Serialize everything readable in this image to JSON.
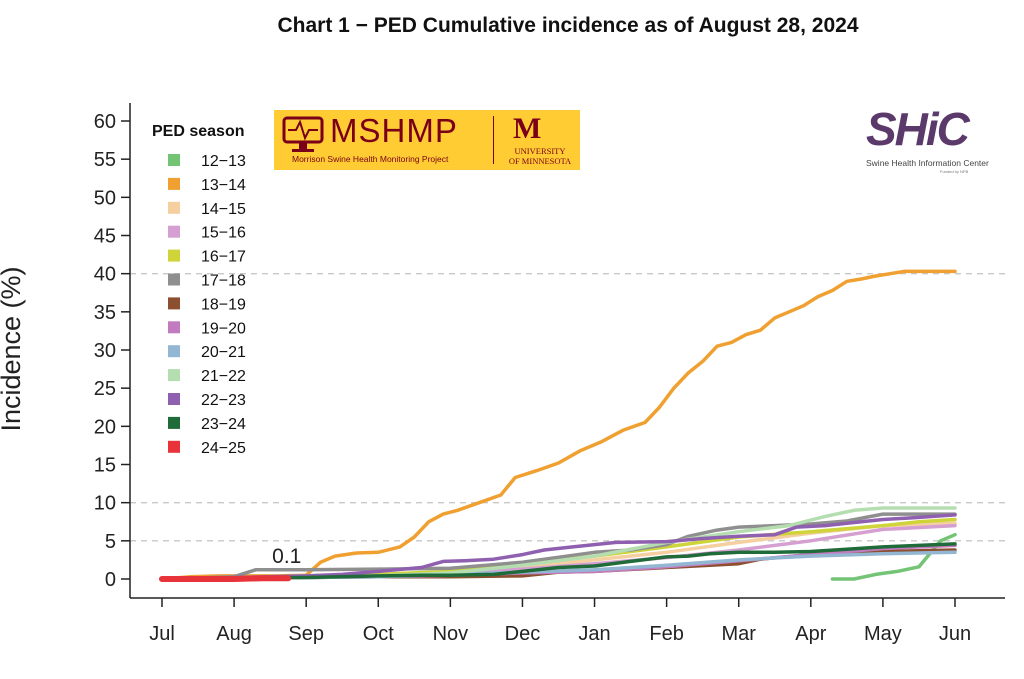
{
  "chart_data": {
    "type": "line",
    "title": "Chart 1 − PED Cumulative incidence as of August 28, 2024",
    "ylabel": "Incidence (%)",
    "xlabel": "",
    "ylim": [
      0,
      60
    ],
    "y_ticks": [
      "0",
      "5",
      "10",
      "15",
      "20",
      "25",
      "30",
      "35",
      "40",
      "45",
      "50",
      "55",
      "60"
    ],
    "y_tick_values": [
      0,
      5,
      10,
      15,
      20,
      25,
      30,
      35,
      40,
      45,
      50,
      55,
      60
    ],
    "x_ticks": [
      "Jul",
      "Aug",
      "Sep",
      "Oct",
      "Nov",
      "Dec",
      "Jan",
      "Feb",
      "Mar",
      "Apr",
      "May",
      "Jun"
    ],
    "x_unit": "month index (0 = Jul)",
    "xlim": [
      0,
      11
    ],
    "reference_lines": [
      5,
      10,
      40
    ],
    "grid": "dashed reference lines at 5, 10, 40",
    "legend": {
      "title": "PED season",
      "placement": "top-left"
    },
    "annotation": {
      "text": "0.1",
      "x": 1.75,
      "y": 0.1
    },
    "series": [
      {
        "name": "12−13",
        "color": "#74c476",
        "points": [
          [
            9.3,
            0
          ],
          [
            9.6,
            0
          ],
          [
            9.9,
            0.6
          ],
          [
            10.2,
            1.0
          ],
          [
            10.5,
            1.6
          ],
          [
            10.8,
            5.0
          ],
          [
            11,
            5.8
          ]
        ]
      },
      {
        "name": "13−14",
        "color": "#f0a030",
        "points": [
          [
            0,
            0
          ],
          [
            0.4,
            0.3
          ],
          [
            0.8,
            0.4
          ],
          [
            1.2,
            0.4
          ],
          [
            1.6,
            0.4
          ],
          [
            2.0,
            0.5
          ],
          [
            2.2,
            2.2
          ],
          [
            2.4,
            3.0
          ],
          [
            2.7,
            3.4
          ],
          [
            3.0,
            3.5
          ],
          [
            3.3,
            4.2
          ],
          [
            3.5,
            5.5
          ],
          [
            3.7,
            7.5
          ],
          [
            3.9,
            8.5
          ],
          [
            4.1,
            9.0
          ],
          [
            4.4,
            10.0
          ],
          [
            4.7,
            11.0
          ],
          [
            4.9,
            13.3
          ],
          [
            5.2,
            14.2
          ],
          [
            5.5,
            15.2
          ],
          [
            5.8,
            16.8
          ],
          [
            6.1,
            18.0
          ],
          [
            6.4,
            19.5
          ],
          [
            6.7,
            20.5
          ],
          [
            6.9,
            22.5
          ],
          [
            7.1,
            25.0
          ],
          [
            7.3,
            27.0
          ],
          [
            7.5,
            28.5
          ],
          [
            7.7,
            30.5
          ],
          [
            7.9,
            31.0
          ],
          [
            8.1,
            32.0
          ],
          [
            8.3,
            32.6
          ],
          [
            8.5,
            34.2
          ],
          [
            8.7,
            35.0
          ],
          [
            8.9,
            35.8
          ],
          [
            9.1,
            37.0
          ],
          [
            9.3,
            37.8
          ],
          [
            9.5,
            39.0
          ],
          [
            9.7,
            39.3
          ],
          [
            9.9,
            39.7
          ],
          [
            10.1,
            40.0
          ],
          [
            10.3,
            40.3
          ],
          [
            10.6,
            40.3
          ],
          [
            11,
            40.3
          ]
        ]
      },
      {
        "name": "14−15",
        "color": "#f5cfa0",
        "points": [
          [
            0,
            0
          ],
          [
            1,
            0.2
          ],
          [
            2,
            0.4
          ],
          [
            3,
            0.6
          ],
          [
            4,
            0.8
          ],
          [
            5,
            1.5
          ],
          [
            6,
            2.5
          ],
          [
            7,
            3.5
          ],
          [
            8,
            4.8
          ],
          [
            9,
            6.0
          ],
          [
            10,
            7.0
          ],
          [
            11,
            7.3
          ]
        ]
      },
      {
        "name": "15−16",
        "color": "#d59fd1",
        "points": [
          [
            0,
            0
          ],
          [
            1,
            0.2
          ],
          [
            2,
            0.4
          ],
          [
            3,
            0.6
          ],
          [
            4,
            0.9
          ],
          [
            5,
            1.3
          ],
          [
            6,
            2.0
          ],
          [
            7,
            2.8
          ],
          [
            8,
            3.8
          ],
          [
            9,
            5.0
          ],
          [
            10,
            6.5
          ],
          [
            11,
            7.0
          ]
        ]
      },
      {
        "name": "16−17",
        "color": "#cfd43a",
        "points": [
          [
            0,
            0
          ],
          [
            1,
            0.2
          ],
          [
            2,
            0.4
          ],
          [
            3,
            0.6
          ],
          [
            4,
            1.0
          ],
          [
            5,
            2.0
          ],
          [
            6,
            3.0
          ],
          [
            7,
            4.2
          ],
          [
            8,
            5.5
          ],
          [
            9,
            6.2
          ],
          [
            10,
            7.0
          ],
          [
            10.5,
            7.5
          ],
          [
            11,
            7.8
          ]
        ]
      },
      {
        "name": "17−18",
        "color": "#8f8f8f",
        "points": [
          [
            0,
            0
          ],
          [
            1.0,
            0.3
          ],
          [
            1.3,
            1.2
          ],
          [
            2,
            1.2
          ],
          [
            3,
            1.3
          ],
          [
            4,
            1.4
          ],
          [
            5,
            2.2
          ],
          [
            6,
            3.5
          ],
          [
            6.5,
            3.8
          ],
          [
            7,
            4.5
          ],
          [
            7.3,
            5.6
          ],
          [
            7.7,
            6.4
          ],
          [
            8,
            6.8
          ],
          [
            8.5,
            7.0
          ],
          [
            9,
            7.2
          ],
          [
            9.5,
            7.6
          ],
          [
            10,
            8.5
          ],
          [
            11,
            8.5
          ]
        ]
      },
      {
        "name": "18−19",
        "color": "#8c5030",
        "points": [
          [
            0,
            0
          ],
          [
            1,
            0.1
          ],
          [
            2,
            0.2
          ],
          [
            3,
            0.3
          ],
          [
            4,
            0.3
          ],
          [
            5,
            0.4
          ],
          [
            5.5,
            0.9
          ],
          [
            6,
            1.0
          ],
          [
            7,
            1.5
          ],
          [
            8,
            2.0
          ],
          [
            8.3,
            2.6
          ],
          [
            9,
            3.2
          ],
          [
            10,
            3.6
          ],
          [
            11,
            3.8
          ]
        ]
      },
      {
        "name": "19−20",
        "color": "#c37bc0",
        "points": [
          [
            0,
            0
          ],
          [
            1,
            0.1
          ],
          [
            2,
            0.2
          ],
          [
            3,
            0.3
          ],
          [
            4,
            0.5
          ],
          [
            5,
            0.8
          ],
          [
            6,
            1.0
          ],
          [
            7,
            1.6
          ],
          [
            8,
            2.4
          ],
          [
            9,
            3.2
          ],
          [
            10,
            4.0
          ],
          [
            11,
            4.4
          ]
        ]
      },
      {
        "name": "20−21",
        "color": "#93b7d3",
        "points": [
          [
            0,
            0
          ],
          [
            1,
            0.1
          ],
          [
            2,
            0.2
          ],
          [
            3,
            0.3
          ],
          [
            4,
            0.6
          ],
          [
            5,
            0.9
          ],
          [
            6,
            1.2
          ],
          [
            7,
            1.8
          ],
          [
            8,
            2.5
          ],
          [
            9,
            3.0
          ],
          [
            10,
            3.3
          ],
          [
            11,
            3.5
          ]
        ]
      },
      {
        "name": "21−22",
        "color": "#b5deb0",
        "points": [
          [
            0,
            0
          ],
          [
            1,
            0.1
          ],
          [
            2,
            0.2
          ],
          [
            3,
            0.4
          ],
          [
            4,
            0.8
          ],
          [
            5,
            1.8
          ],
          [
            6,
            3.0
          ],
          [
            7,
            4.8
          ],
          [
            8,
            6.2
          ],
          [
            8.7,
            7.0
          ],
          [
            9.2,
            8.2
          ],
          [
            9.6,
            9.0
          ],
          [
            10,
            9.3
          ],
          [
            11,
            9.3
          ]
        ]
      },
      {
        "name": "22−23",
        "color": "#9060b0",
        "points": [
          [
            0,
            0
          ],
          [
            1,
            0.2
          ],
          [
            2,
            0.4
          ],
          [
            2.5,
            0.6
          ],
          [
            3,
            1.0
          ],
          [
            3.6,
            1.5
          ],
          [
            3.9,
            2.3
          ],
          [
            4.2,
            2.4
          ],
          [
            4.6,
            2.6
          ],
          [
            5,
            3.2
          ],
          [
            5.3,
            3.8
          ],
          [
            5.7,
            4.2
          ],
          [
            6,
            4.5
          ],
          [
            6.3,
            4.8
          ],
          [
            7,
            4.9
          ],
          [
            7.5,
            5.3
          ],
          [
            8,
            5.6
          ],
          [
            8.5,
            5.8
          ],
          [
            8.8,
            6.8
          ],
          [
            9.2,
            7.0
          ],
          [
            9.6,
            7.4
          ],
          [
            10,
            7.8
          ],
          [
            10.4,
            8.0
          ],
          [
            11,
            8.4
          ]
        ]
      },
      {
        "name": "23−24",
        "color": "#1f6b3a",
        "points": [
          [
            0,
            0
          ],
          [
            1,
            0.1
          ],
          [
            2,
            0.2
          ],
          [
            3,
            0.4
          ],
          [
            3.6,
            0.5
          ],
          [
            4,
            0.5
          ],
          [
            4.6,
            0.6
          ],
          [
            5.0,
            1.0
          ],
          [
            5.5,
            1.5
          ],
          [
            6,
            1.7
          ],
          [
            6.5,
            2.3
          ],
          [
            7,
            2.9
          ],
          [
            7.3,
            3.0
          ],
          [
            7.6,
            3.3
          ],
          [
            8,
            3.5
          ],
          [
            8.5,
            3.5
          ],
          [
            9,
            3.6
          ],
          [
            9.5,
            3.9
          ],
          [
            10,
            4.2
          ],
          [
            10.5,
            4.4
          ],
          [
            11,
            4.6
          ]
        ]
      },
      {
        "name": "24−25",
        "color": "#e8333a",
        "points": [
          [
            0,
            0
          ],
          [
            0.5,
            0
          ],
          [
            1,
            0
          ],
          [
            1.4,
            0.1
          ],
          [
            1.75,
            0.1
          ]
        ]
      }
    ]
  }
}
